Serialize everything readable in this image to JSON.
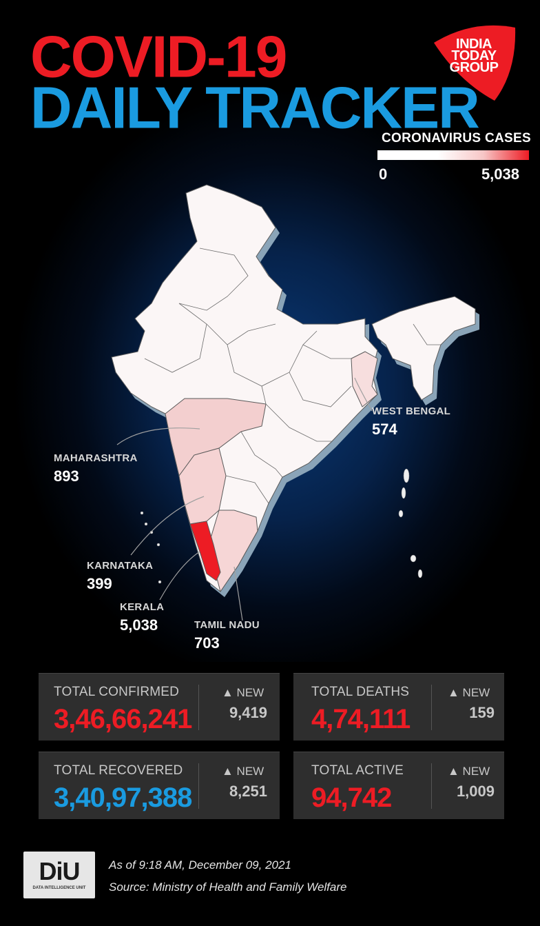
{
  "header": {
    "title_line1": "COVID-19",
    "title_line2": "DAILY TRACKER",
    "brand": [
      "INDIA",
      "TODAY",
      "GROUP"
    ]
  },
  "legend": {
    "title": "CORONAVIRUS CASES",
    "min": "0",
    "max": "5,038",
    "color_low": "#ffffff",
    "color_high": "#ed1c24"
  },
  "map": {
    "callouts": [
      {
        "state": "MAHARASHTRA",
        "value": "893"
      },
      {
        "state": "WEST BENGAL",
        "value": "574"
      },
      {
        "state": "KARNATAKA",
        "value": "399"
      },
      {
        "state": "KERALA",
        "value": "5,038"
      },
      {
        "state": "TAMIL NADU",
        "value": "703"
      }
    ]
  },
  "stats": [
    {
      "label": "TOTAL CONFIRMED",
      "value": "3,46,66,241",
      "new_label": "▲ NEW",
      "new_value": "9,419",
      "color": "#ed1c24"
    },
    {
      "label": "TOTAL DEATHS",
      "value": "4,74,111",
      "new_label": "▲ NEW",
      "new_value": "159",
      "color": "#ed1c24"
    },
    {
      "label": "TOTAL RECOVERED",
      "value": "3,40,97,388",
      "new_label": "▲ NEW",
      "new_value": "8,251",
      "color": "#1a9be0"
    },
    {
      "label": "TOTAL ACTIVE",
      "value": "94,742",
      "new_label": "▲ NEW",
      "new_value": "1,009",
      "color": "#ed1c24"
    }
  ],
  "footer": {
    "logo_text": "DiU",
    "logo_sub": "DATA INTELLIGENCE UNIT",
    "as_of": "As of 9:18 AM, December 09, 2021",
    "source": "Source: Ministry of Health and Family Welfare"
  }
}
